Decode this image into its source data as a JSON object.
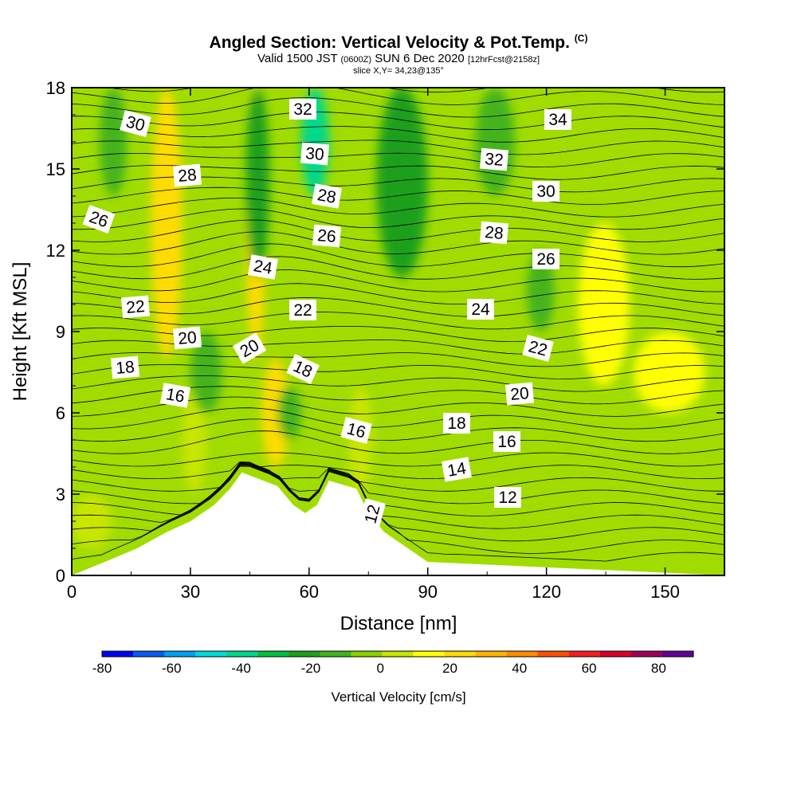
{
  "title": {
    "main": "Angled Section: Vertical Velocity & Pot.Temp.",
    "copyright": "(C)",
    "valid_prefix": "Valid 1500 JST",
    "valid_utc": "(0600Z)",
    "valid_date": "SUN 6 Dec 2020",
    "forecast": "[12hrFcst@2158z]",
    "slice": "slice X,Y= 34,23@135°"
  },
  "chart_data": {
    "type": "heatmap",
    "title": "Angled Section: Vertical Velocity & Pot.Temp.",
    "xlabel": "Distance [nm]",
    "ylabel": "Height [Kft MSL]",
    "xlim": [
      0,
      165
    ],
    "ylim": [
      0,
      18
    ],
    "x_ticks": [
      "0",
      "30",
      "60",
      "90",
      "120",
      "150"
    ],
    "y_ticks": [
      "0",
      "3",
      "6",
      "9",
      "12",
      "15",
      "18"
    ],
    "colorbar": {
      "label": "Vertical Velocity [cm/s]",
      "tick_labels": [
        "-80",
        "-60",
        "-40",
        "-20",
        "0",
        "20",
        "40",
        "60",
        "80"
      ],
      "bounds": [
        -80,
        90
      ],
      "colors": [
        "#0000f5",
        "#0a5af5",
        "#00a0f5",
        "#00dcdc",
        "#00d88c",
        "#00c040",
        "#1ea01e",
        "#44b41e",
        "#8cd200",
        "#c8e600",
        "#ffff00",
        "#ffdc00",
        "#ffb400",
        "#ff8c00",
        "#ff5000",
        "#f51e1e",
        "#dc0028",
        "#a0005a",
        "#640096"
      ]
    },
    "terrain_profile": [
      {
        "x": 0,
        "y": 0
      },
      {
        "x": 10,
        "y": 0.6
      },
      {
        "x": 16.5,
        "y": 1.0
      },
      {
        "x": 24,
        "y": 1.6
      },
      {
        "x": 30,
        "y": 2.0
      },
      {
        "x": 36,
        "y": 2.6
      },
      {
        "x": 40,
        "y": 3.2
      },
      {
        "x": 43,
        "y": 3.8
      },
      {
        "x": 52,
        "y": 3.3
      },
      {
        "x": 56,
        "y": 2.6
      },
      {
        "x": 59,
        "y": 2.3
      },
      {
        "x": 62,
        "y": 2.6
      },
      {
        "x": 65,
        "y": 3.5
      },
      {
        "x": 72,
        "y": 3.2
      },
      {
        "x": 75,
        "y": 2.3
      },
      {
        "x": 79,
        "y": 1.6
      },
      {
        "x": 85,
        "y": 1.0
      },
      {
        "x": 90,
        "y": 0.5
      },
      {
        "x": 165,
        "y": 0
      }
    ],
    "updraft_regions": [
      {
        "x": [
          20,
          28
        ],
        "y": [
          8,
          18
        ],
        "value": 25
      },
      {
        "x": [
          44,
          49
        ],
        "y": [
          8,
          18
        ],
        "value": 20
      },
      {
        "x": [
          48,
          55
        ],
        "y": [
          4,
          8
        ],
        "value": 25
      },
      {
        "x": [
          128,
          141
        ],
        "y": [
          7,
          13
        ],
        "value": 10
      },
      {
        "x": [
          142,
          160
        ],
        "y": [
          6,
          9
        ],
        "value": 10
      },
      {
        "x": [
          0,
          10
        ],
        "y": [
          1,
          3
        ],
        "value": 8
      },
      {
        "x": [
          28,
          34
        ],
        "y": [
          3,
          7
        ],
        "value": 8
      },
      {
        "x": [
          70,
          76
        ],
        "y": [
          3,
          7
        ],
        "value": 8
      }
    ],
    "downdraft_regions": [
      {
        "x": [
          7,
          14
        ],
        "y": [
          14,
          18
        ],
        "value": -15
      },
      {
        "x": [
          44,
          50
        ],
        "y": [
          11,
          18
        ],
        "value": -25
      },
      {
        "x": [
          58,
          65
        ],
        "y": [
          14,
          18
        ],
        "value": -40
      },
      {
        "x": [
          77,
          90
        ],
        "y": [
          11,
          18
        ],
        "value": -20
      },
      {
        "x": [
          102,
          112
        ],
        "y": [
          14,
          18
        ],
        "value": -15
      },
      {
        "x": [
          115,
          122
        ],
        "y": [
          9,
          12
        ],
        "value": -15
      },
      {
        "x": [
          30,
          38
        ],
        "y": [
          6,
          9
        ],
        "value": -15
      },
      {
        "x": [
          52,
          58
        ],
        "y": [
          5,
          7
        ],
        "value": -15
      }
    ],
    "potential_temperature_labels": [
      "30",
      "28",
      "26",
      "22",
      "20",
      "18",
      "16",
      "32",
      "30",
      "28",
      "26",
      "24",
      "22",
      "20",
      "18",
      "16",
      "12",
      "34",
      "32",
      "30",
      "28",
      "26",
      "24",
      "22",
      "20",
      "18",
      "16",
      "14",
      "12"
    ]
  }
}
